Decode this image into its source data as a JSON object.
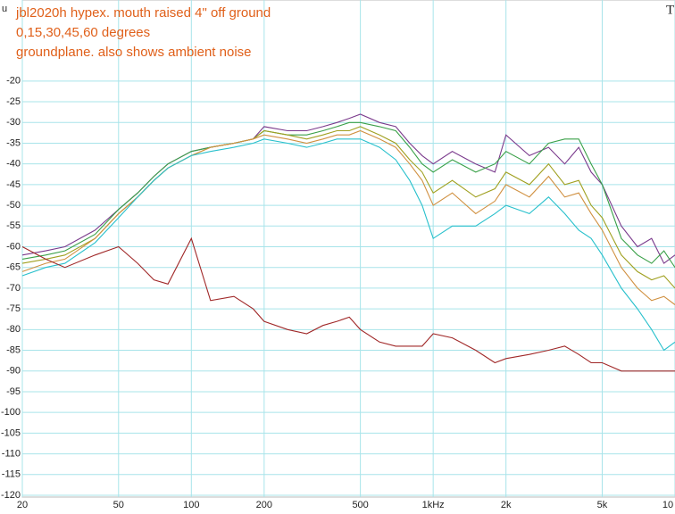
{
  "chart_data": {
    "type": "line",
    "title": "jbl2020h hypex. mouth raised 4\" off ground",
    "subtitle": "0,15,30,45,60 degrees",
    "annotation": "groundplane. also shows ambient noise",
    "y_label": "u",
    "corner_mark": "T",
    "log_x": true,
    "grid": true,
    "xlim": [
      20,
      10000
    ],
    "ylim": [
      -120,
      0
    ],
    "xticks": [
      20,
      50,
      100,
      200,
      500,
      {
        "value": 1000,
        "label": "1kHz"
      },
      {
        "value": 2000,
        "label": "2k"
      },
      {
        "value": 5000,
        "label": "5k"
      },
      {
        "value": 10000,
        "label": "10"
      }
    ],
    "yticks": [
      -20,
      -25,
      -30,
      -35,
      -40,
      -45,
      -50,
      -55,
      -60,
      -65,
      -70,
      -75,
      -80,
      -85,
      -90,
      -95,
      -100,
      -105,
      -110,
      -115,
      -120
    ],
    "x": [
      20,
      25,
      30,
      40,
      50,
      60,
      70,
      80,
      100,
      120,
      150,
      180,
      200,
      250,
      300,
      350,
      400,
      450,
      500,
      600,
      700,
      800,
      900,
      1000,
      1200,
      1500,
      1800,
      2000,
      2500,
      3000,
      3500,
      4000,
      4500,
      5000,
      6000,
      7000,
      8000,
      9000,
      10000
    ],
    "series": [
      {
        "color": "#7a3a8c",
        "values": [
          -62,
          -61,
          -60,
          -56,
          -51,
          -47,
          -43,
          -40,
          -37,
          -36,
          -35,
          -34,
          -31,
          -32,
          -32,
          -31,
          -30,
          -29,
          -28,
          -30,
          -31,
          -35,
          -38,
          -40,
          -37,
          -40,
          -42,
          -33,
          -38,
          -36,
          -40,
          -36,
          -42,
          -45,
          -55,
          -60,
          -58,
          -64,
          -62
        ]
      },
      {
        "color": "#3aa048",
        "values": [
          -63,
          -62,
          -61,
          -57,
          -51,
          -47,
          -43,
          -40,
          -37,
          -36,
          -35,
          -34,
          -32,
          -33,
          -33,
          -32,
          -31,
          -30,
          -30,
          -31,
          -32,
          -36,
          -40,
          -42,
          -39,
          -42,
          -40,
          -37,
          -40,
          -35,
          -34,
          -34,
          -40,
          -45,
          -58,
          -62,
          -64,
          -61,
          -65
        ]
      },
      {
        "color": "#a0a020",
        "values": [
          -64,
          -63,
          -62,
          -58,
          -52,
          -48,
          -44,
          -41,
          -38,
          -36,
          -35,
          -34,
          -32,
          -33,
          -34,
          -33,
          -32,
          -32,
          -31,
          -33,
          -35,
          -39,
          -42,
          -47,
          -44,
          -48,
          -46,
          -42,
          -45,
          -40,
          -45,
          -44,
          -50,
          -53,
          -62,
          -66,
          -68,
          -67,
          -70
        ]
      },
      {
        "color": "#d09040",
        "values": [
          -66,
          -64,
          -63,
          -58,
          -52,
          -48,
          -44,
          -41,
          -38,
          -36,
          -35,
          -34,
          -33,
          -34,
          -35,
          -34,
          -33,
          -33,
          -32,
          -34,
          -36,
          -40,
          -44,
          -50,
          -47,
          -52,
          -49,
          -45,
          -48,
          -43,
          -48,
          -47,
          -52,
          -56,
          -65,
          -70,
          -73,
          -72,
          -74
        ]
      },
      {
        "color": "#28c0cc",
        "values": [
          -67,
          -65,
          -64,
          -59,
          -53,
          -48,
          -44,
          -41,
          -38,
          -37,
          -36,
          -35,
          -34,
          -35,
          -36,
          -35,
          -34,
          -34,
          -34,
          -36,
          -39,
          -44,
          -50,
          -58,
          -55,
          -55,
          -52,
          -50,
          -52,
          -48,
          -52,
          -56,
          -58,
          -62,
          -70,
          -75,
          -80,
          -85,
          -83
        ]
      },
      {
        "color": "#a02828",
        "values": [
          -60,
          -63,
          -65,
          -62,
          -60,
          -64,
          -68,
          -69,
          -58,
          -73,
          -72,
          -75,
          -78,
          -80,
          -81,
          -79,
          -78,
          -77,
          -80,
          -83,
          -84,
          -84,
          -84,
          -81,
          -82,
          -85,
          -88,
          -87,
          -86,
          -85,
          -84,
          -86,
          -88,
          -88,
          -90,
          -90,
          -90,
          -90,
          -90
        ]
      }
    ]
  }
}
